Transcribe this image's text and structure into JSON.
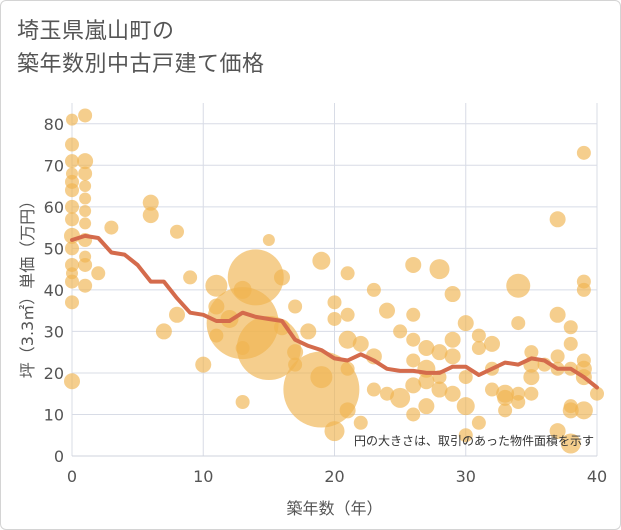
{
  "title_line1": "埼玉県嵐山町の",
  "title_line2": "築年数別中古戸建て価格",
  "chart_data": {
    "type": "scatter",
    "xlabel": "築年数（年）",
    "ylabel": "坪（3.3㎡）単価（万円）",
    "xlim": [
      0,
      40
    ],
    "ylim": [
      0,
      85
    ],
    "xticks": [
      0,
      10,
      20,
      30,
      40
    ],
    "yticks": [
      0,
      10,
      20,
      30,
      40,
      50,
      60,
      70,
      80
    ],
    "grid": true,
    "note": "円の大きさは、取引のあった物件面積を示す",
    "colors": {
      "bubble": "#f0b450",
      "line": "#d46b4c",
      "grid": "#d8dce6"
    },
    "bubbles": [
      {
        "x": 0,
        "y": 81,
        "s": 6
      },
      {
        "x": 1,
        "y": 82,
        "s": 7
      },
      {
        "x": 0,
        "y": 75,
        "s": 7
      },
      {
        "x": 0,
        "y": 71,
        "s": 7
      },
      {
        "x": 1,
        "y": 71,
        "s": 8
      },
      {
        "x": 0,
        "y": 68,
        "s": 6
      },
      {
        "x": 1,
        "y": 68,
        "s": 7
      },
      {
        "x": 0,
        "y": 66,
        "s": 7
      },
      {
        "x": 1,
        "y": 65,
        "s": 6
      },
      {
        "x": 0,
        "y": 64,
        "s": 7
      },
      {
        "x": 1,
        "y": 62,
        "s": 6
      },
      {
        "x": 0,
        "y": 60,
        "s": 7
      },
      {
        "x": 1,
        "y": 59,
        "s": 6
      },
      {
        "x": 0,
        "y": 57,
        "s": 7
      },
      {
        "x": 1,
        "y": 56,
        "s": 6
      },
      {
        "x": 0,
        "y": 53,
        "s": 8
      },
      {
        "x": 1,
        "y": 52,
        "s": 7
      },
      {
        "x": 0,
        "y": 50,
        "s": 7
      },
      {
        "x": 1,
        "y": 48,
        "s": 6
      },
      {
        "x": 0,
        "y": 46,
        "s": 7
      },
      {
        "x": 1,
        "y": 46,
        "s": 7
      },
      {
        "x": 0,
        "y": 44,
        "s": 6
      },
      {
        "x": 2,
        "y": 44,
        "s": 7
      },
      {
        "x": 0,
        "y": 42,
        "s": 7
      },
      {
        "x": 1,
        "y": 41,
        "s": 7
      },
      {
        "x": 0,
        "y": 37,
        "s": 7
      },
      {
        "x": 0,
        "y": 18,
        "s": 8
      },
      {
        "x": 3,
        "y": 55,
        "s": 7
      },
      {
        "x": 6,
        "y": 61,
        "s": 8
      },
      {
        "x": 6,
        "y": 58,
        "s": 8
      },
      {
        "x": 8,
        "y": 54,
        "s": 7
      },
      {
        "x": 9,
        "y": 43,
        "s": 7
      },
      {
        "x": 8,
        "y": 34,
        "s": 8
      },
      {
        "x": 7,
        "y": 30,
        "s": 8
      },
      {
        "x": 10,
        "y": 22,
        "s": 8
      },
      {
        "x": 11,
        "y": 41,
        "s": 11
      },
      {
        "x": 11,
        "y": 36,
        "s": 8
      },
      {
        "x": 11,
        "y": 29,
        "s": 7
      },
      {
        "x": 12,
        "y": 33,
        "s": 9
      },
      {
        "x": 13,
        "y": 40,
        "s": 9
      },
      {
        "x": 13,
        "y": 26,
        "s": 7
      },
      {
        "x": 13,
        "y": 13,
        "s": 7
      },
      {
        "x": 14,
        "y": 43,
        "s": 28
      },
      {
        "x": 13,
        "y": 32,
        "s": 36
      },
      {
        "x": 15,
        "y": 26,
        "s": 32
      },
      {
        "x": 15,
        "y": 52,
        "s": 6
      },
      {
        "x": 16,
        "y": 43,
        "s": 8
      },
      {
        "x": 16,
        "y": 31,
        "s": 8
      },
      {
        "x": 17,
        "y": 36,
        "s": 7
      },
      {
        "x": 18,
        "y": 30,
        "s": 8
      },
      {
        "x": 17,
        "y": 25,
        "s": 8
      },
      {
        "x": 17,
        "y": 22,
        "s": 7
      },
      {
        "x": 19,
        "y": 47,
        "s": 9
      },
      {
        "x": 19,
        "y": 16,
        "s": 38
      },
      {
        "x": 19,
        "y": 19,
        "s": 11
      },
      {
        "x": 20,
        "y": 37,
        "s": 7
      },
      {
        "x": 20,
        "y": 33,
        "s": 7
      },
      {
        "x": 20,
        "y": 6,
        "s": 10
      },
      {
        "x": 21,
        "y": 44,
        "s": 7
      },
      {
        "x": 21,
        "y": 34,
        "s": 7
      },
      {
        "x": 21,
        "y": 28,
        "s": 9
      },
      {
        "x": 21,
        "y": 21,
        "s": 7
      },
      {
        "x": 21,
        "y": 11,
        "s": 8
      },
      {
        "x": 22,
        "y": 27,
        "s": 8
      },
      {
        "x": 22,
        "y": 8,
        "s": 7
      },
      {
        "x": 23,
        "y": 40,
        "s": 7
      },
      {
        "x": 23,
        "y": 24,
        "s": 8
      },
      {
        "x": 23,
        "y": 16,
        "s": 7
      },
      {
        "x": 24,
        "y": 35,
        "s": 8
      },
      {
        "x": 24,
        "y": 15,
        "s": 7
      },
      {
        "x": 25,
        "y": 30,
        "s": 7
      },
      {
        "x": 25,
        "y": 14,
        "s": 10
      },
      {
        "x": 26,
        "y": 46,
        "s": 8
      },
      {
        "x": 26,
        "y": 34,
        "s": 7
      },
      {
        "x": 26,
        "y": 28,
        "s": 7
      },
      {
        "x": 26,
        "y": 23,
        "s": 7
      },
      {
        "x": 26,
        "y": 17,
        "s": 8
      },
      {
        "x": 26,
        "y": 10,
        "s": 7
      },
      {
        "x": 27,
        "y": 26,
        "s": 8
      },
      {
        "x": 27,
        "y": 21,
        "s": 9
      },
      {
        "x": 27,
        "y": 18,
        "s": 8
      },
      {
        "x": 27,
        "y": 12,
        "s": 8
      },
      {
        "x": 28,
        "y": 45,
        "s": 10
      },
      {
        "x": 28,
        "y": 25,
        "s": 8
      },
      {
        "x": 28,
        "y": 16,
        "s": 8
      },
      {
        "x": 28,
        "y": 19,
        "s": 7
      },
      {
        "x": 29,
        "y": 39,
        "s": 8
      },
      {
        "x": 29,
        "y": 28,
        "s": 8
      },
      {
        "x": 29,
        "y": 24,
        "s": 8
      },
      {
        "x": 29,
        "y": 15,
        "s": 8
      },
      {
        "x": 30,
        "y": 32,
        "s": 8
      },
      {
        "x": 30,
        "y": 19,
        "s": 7
      },
      {
        "x": 30,
        "y": 12,
        "s": 9
      },
      {
        "x": 30,
        "y": 5,
        "s": 7
      },
      {
        "x": 31,
        "y": 29,
        "s": 7
      },
      {
        "x": 31,
        "y": 26,
        "s": 7
      },
      {
        "x": 31,
        "y": 8,
        "s": 7
      },
      {
        "x": 32,
        "y": 27,
        "s": 8
      },
      {
        "x": 32,
        "y": 21,
        "s": 7
      },
      {
        "x": 32,
        "y": 16,
        "s": 7
      },
      {
        "x": 33,
        "y": 15,
        "s": 9
      },
      {
        "x": 33,
        "y": 14,
        "s": 8
      },
      {
        "x": 33,
        "y": 11,
        "s": 7
      },
      {
        "x": 34,
        "y": 41,
        "s": 12
      },
      {
        "x": 34,
        "y": 32,
        "s": 7
      },
      {
        "x": 34,
        "y": 15,
        "s": 7
      },
      {
        "x": 34,
        "y": 13,
        "s": 7
      },
      {
        "x": 35,
        "y": 25,
        "s": 7
      },
      {
        "x": 35,
        "y": 22,
        "s": 8
      },
      {
        "x": 35,
        "y": 19,
        "s": 8
      },
      {
        "x": 35,
        "y": 15,
        "s": 7
      },
      {
        "x": 36,
        "y": 22,
        "s": 7
      },
      {
        "x": 37,
        "y": 57,
        "s": 8
      },
      {
        "x": 37,
        "y": 34,
        "s": 8
      },
      {
        "x": 37,
        "y": 24,
        "s": 7
      },
      {
        "x": 37,
        "y": 21,
        "s": 7
      },
      {
        "x": 37,
        "y": 6,
        "s": 8
      },
      {
        "x": 38,
        "y": 31,
        "s": 7
      },
      {
        "x": 38,
        "y": 27,
        "s": 7
      },
      {
        "x": 38,
        "y": 21,
        "s": 7
      },
      {
        "x": 38,
        "y": 12,
        "s": 7
      },
      {
        "x": 38,
        "y": 11,
        "s": 8
      },
      {
        "x": 38,
        "y": 3,
        "s": 10
      },
      {
        "x": 39,
        "y": 73,
        "s": 7
      },
      {
        "x": 39,
        "y": 42,
        "s": 7
      },
      {
        "x": 39,
        "y": 40,
        "s": 7
      },
      {
        "x": 39,
        "y": 23,
        "s": 7
      },
      {
        "x": 39,
        "y": 21,
        "s": 8
      },
      {
        "x": 39,
        "y": 19,
        "s": 8
      },
      {
        "x": 39,
        "y": 11,
        "s": 9
      },
      {
        "x": 40,
        "y": 15,
        "s": 7
      }
    ],
    "trend": {
      "x": [
        0,
        1,
        2,
        3,
        4,
        5,
        6,
        7,
        8,
        9,
        10,
        11,
        12,
        13,
        14,
        15,
        16,
        17,
        18,
        19,
        20,
        21,
        22,
        23,
        24,
        25,
        26,
        27,
        28,
        29,
        30,
        31,
        32,
        33,
        34,
        35,
        36,
        37,
        38,
        39,
        40
      ],
      "y": [
        52,
        53,
        52.5,
        49,
        48.5,
        46,
        42,
        42,
        38,
        34.5,
        34,
        32.5,
        32.5,
        34.5,
        33.5,
        33,
        32.5,
        28,
        26.5,
        25.5,
        23.5,
        23,
        24.5,
        23,
        21,
        20.5,
        20.5,
        20,
        20,
        21.5,
        21.5,
        19.5,
        21,
        22.5,
        22,
        23.5,
        23,
        21,
        21,
        19,
        16.5
      ]
    }
  }
}
